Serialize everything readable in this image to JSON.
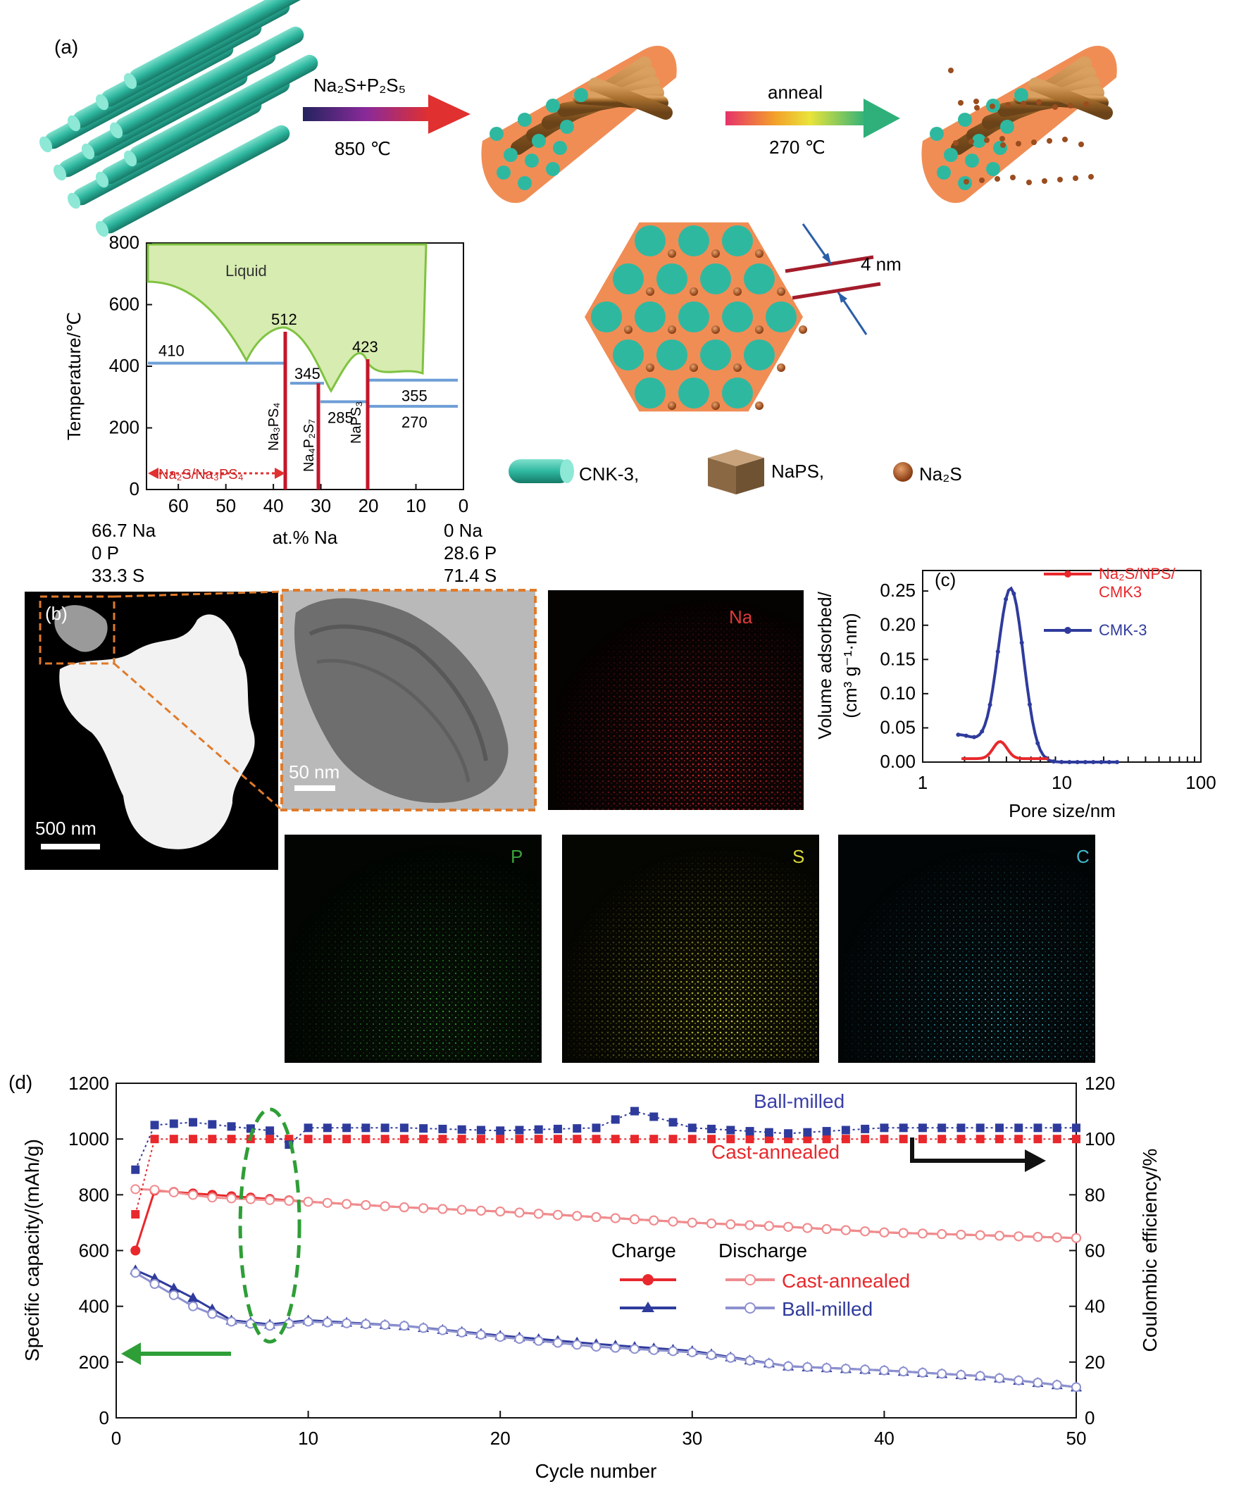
{
  "colors": {
    "cnk3": "#2fb8a0",
    "shell": "#f08d55",
    "brown": "#a86f2e",
    "na2s": "#9a4d1f",
    "liquid": "#d7ecb0",
    "liquid_line": "#7fc241",
    "phase_line": "#c4162a",
    "iso_line": "#6d9ed6",
    "red_series": "#e8282c",
    "blue_series": "#2f3b9c",
    "green_arrow": "#2e9e37",
    "map_na": "#d8262b",
    "map_p": "#3aa33a",
    "map_s": "#d8d83a",
    "map_c": "#3fb9c9"
  },
  "panel_a": {
    "label": "(a)",
    "step1_reagent": "Na₂S+P₂S₅",
    "step1_temp": "850 ℃",
    "step2_label": "anneal",
    "step2_temp": "270 ℃",
    "pore_size_label": "4 nm",
    "legend": [
      {
        "name": "CNK-3,",
        "icon": "cylinder-icon"
      },
      {
        "name": "NaPS,",
        "icon": "cube-icon"
      },
      {
        "name": "Na₂S",
        "icon": "sphere-icon"
      }
    ]
  },
  "phase_diagram": {
    "ylabel": "Temperature/℃",
    "xlabel": "at.% Na",
    "y_ticks": [
      "0",
      "200",
      "400",
      "600",
      "800"
    ],
    "x_ticks": [
      "60",
      "50",
      "40",
      "30",
      "20",
      "10",
      "0"
    ],
    "liquid_label": "Liquid",
    "region_label": "Na₂S/Na₃PS₄",
    "temperatures": [
      {
        "label": "410",
        "value": 410
      },
      {
        "label": "512",
        "value": 512
      },
      {
        "label": "345",
        "value": 345
      },
      {
        "label": "423",
        "value": 423
      },
      {
        "label": "285",
        "value": 285
      },
      {
        "label": "355",
        "value": 355
      },
      {
        "label": "270",
        "value": 270
      }
    ],
    "phases": [
      "Na₃PS₄",
      "Na₄P₂S₇",
      "NaPS₃"
    ],
    "left_comp": [
      "66.7 Na",
      "0 P",
      "33.3 S"
    ],
    "right_comp": [
      "0 Na",
      "28.6 P",
      "71.4 S"
    ]
  },
  "panel_b": {
    "label": "(b)",
    "scale1": "500 nm",
    "scale2": "50 nm",
    "maps": [
      "Na",
      "P",
      "S",
      "C"
    ]
  },
  "panel_c": {
    "label": "(c)",
    "ylabel_line1": "Volume adsorbed/",
    "ylabel_line2": "(cm³ g⁻¹·nm)",
    "xlabel": "Pore size/nm",
    "x_ticks": [
      "1",
      "10",
      "100"
    ],
    "y_ticks": [
      "0.00",
      "0.05",
      "0.10",
      "0.15",
      "0.20",
      "0.25"
    ],
    "legend": [
      "Na₂S/NPS/",
      "CMK3",
      "CMK-3"
    ]
  },
  "chart_data": {
    "type": "line",
    "title": "(d)",
    "xlabel": "Cycle number",
    "ylabel": "Specific capacity/(mAh/g)",
    "y2label": "Coulombic efficiency/%",
    "xlim": [
      0,
      50
    ],
    "ylim": [
      0,
      1200
    ],
    "y2lim": [
      0,
      120
    ],
    "x_ticks": [
      "0",
      "10",
      "20",
      "30",
      "40",
      "50"
    ],
    "y_ticks": [
      "0",
      "200",
      "400",
      "600",
      "800",
      "1000",
      "1200"
    ],
    "y2_ticks": [
      "0",
      "20",
      "40",
      "60",
      "80",
      "100",
      "120"
    ],
    "annotations": {
      "ball_milled": "Ball-milled",
      "cast_annealed": "Cast-annealed"
    },
    "legend": {
      "charge_header": "Charge",
      "discharge_header": "Discharge",
      "rows": [
        "Cast-annealed",
        "Ball-milled"
      ]
    },
    "series": [
      {
        "name": "Cast-annealed charge",
        "axis": "left",
        "color": "#e8282c",
        "marker": "filled-circle",
        "x": [
          1,
          2,
          5,
          10,
          15,
          20,
          25,
          30,
          35,
          40,
          45,
          50
        ],
        "values": [
          600,
          815,
          800,
          775,
          755,
          740,
          720,
          700,
          685,
          665,
          655,
          645
        ]
      },
      {
        "name": "Cast-annealed discharge",
        "axis": "left",
        "color": "#f08c8f",
        "marker": "open-circle",
        "x": [
          1,
          2,
          5,
          10,
          15,
          20,
          25,
          30,
          35,
          40,
          45,
          50
        ],
        "values": [
          820,
          818,
          790,
          775,
          755,
          740,
          720,
          700,
          685,
          665,
          655,
          645
        ]
      },
      {
        "name": "Ball-milled charge",
        "axis": "left",
        "color": "#2f3b9c",
        "marker": "filled-triangle",
        "x": [
          1,
          2,
          4,
          6,
          8,
          10,
          15,
          20,
          25,
          30,
          35,
          40,
          45,
          50
        ],
        "values": [
          530,
          500,
          430,
          350,
          335,
          350,
          330,
          295,
          265,
          240,
          185,
          170,
          150,
          110
        ]
      },
      {
        "name": "Ball-milled discharge",
        "axis": "left",
        "color": "#8d91cf",
        "marker": "open-circle",
        "x": [
          1,
          2,
          4,
          6,
          8,
          10,
          15,
          20,
          25,
          30,
          35,
          40,
          45,
          50
        ],
        "values": [
          520,
          480,
          400,
          345,
          330,
          345,
          330,
          290,
          255,
          235,
          185,
          170,
          150,
          110
        ]
      },
      {
        "name": "Cast-annealed CE",
        "axis": "right",
        "color": "#e8282c",
        "marker": "square",
        "x": [
          1,
          2,
          5,
          10,
          15,
          20,
          25,
          30,
          35,
          40,
          45,
          50
        ],
        "values": [
          73,
          100,
          100,
          100,
          100,
          100,
          100,
          100,
          100,
          100,
          100,
          100
        ]
      },
      {
        "name": "Ball-milled CE",
        "axis": "right",
        "color": "#2f3b9c",
        "marker": "square",
        "x": [
          1,
          2,
          4,
          8,
          9,
          10,
          15,
          20,
          25,
          27,
          30,
          35,
          40,
          45,
          50
        ],
        "values": [
          89,
          105,
          106,
          103,
          98,
          104,
          104,
          103,
          104,
          110,
          104,
          102,
          104,
          104,
          104
        ]
      }
    ]
  }
}
